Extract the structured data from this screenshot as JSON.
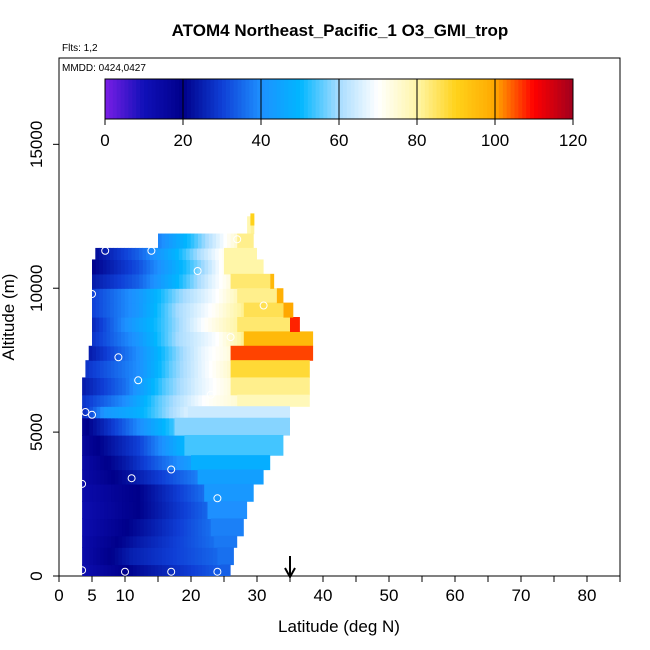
{
  "chart_data": {
    "type": "heatmap",
    "title": "ATOM4 Northeast_Pacific_1 O3_GMI_trop",
    "flights_label": "Flts: 1,2",
    "dates_label": "MMDD: 0424,0427",
    "xlabel": "Latitude (deg N)",
    "ylabel": "Altitude (m)",
    "xlim": [
      0,
      85
    ],
    "ylim": [
      0,
      18000
    ],
    "x_ticks": [
      0,
      5,
      10,
      20,
      30,
      40,
      50,
      60,
      70,
      80
    ],
    "x_tick_labels": [
      "0",
      "5",
      "10",
      "20",
      "30",
      "40",
      "50",
      "60",
      "70",
      "80"
    ],
    "y_ticks": [
      0,
      5000,
      10000,
      15000
    ],
    "y_tick_labels": [
      "0",
      "5000",
      "10000",
      "15000"
    ],
    "colorbar": {
      "range": [
        0,
        120
      ],
      "ticks": [
        0,
        20,
        40,
        60,
        80,
        100,
        120
      ],
      "tick_labels": [
        "0",
        "20",
        "40",
        "60",
        "80",
        "100",
        "120"
      ],
      "colors": [
        "#7a1ee6",
        "#1010b8",
        "#00008a",
        "#0f3fd6",
        "#1e90ff",
        "#00b6ff",
        "#a8dcff",
        "#ffffff",
        "#fff6a8",
        "#ffd21a",
        "#ffa800",
        "#ff0000",
        "#a0001e"
      ]
    },
    "latitude_marker": 35,
    "bands": [
      {
        "alt_min": 0,
        "alt_max": 400,
        "lat_min": 3.5,
        "lat_max": 24.5,
        "stops": [
          [
            3.5,
            12
          ],
          [
            12,
            22
          ],
          [
            24.5,
            34
          ]
        ]
      },
      {
        "alt_min": 400,
        "alt_max": 1000,
        "lat_min": 3.5,
        "lat_max": 24,
        "stops": [
          [
            3.5,
            13
          ],
          [
            11,
            25
          ],
          [
            24,
            35
          ]
        ]
      },
      {
        "alt_min": 1000,
        "alt_max": 1400,
        "lat_min": 3.5,
        "lat_max": 23.5,
        "stops": [
          [
            3.5,
            13
          ],
          [
            12,
            24
          ],
          [
            23.5,
            36
          ]
        ]
      },
      {
        "alt_min": 1400,
        "alt_max": 2000,
        "lat_min": 3.5,
        "lat_max": 23,
        "stops": [
          [
            3.5,
            12
          ],
          [
            12,
            22
          ],
          [
            23,
            36
          ]
        ]
      },
      {
        "alt_min": 2000,
        "alt_max": 2600,
        "lat_min": 3.5,
        "lat_max": 22.5,
        "stops": [
          [
            3.5,
            12
          ],
          [
            12,
            20
          ],
          [
            22.5,
            35
          ]
        ]
      },
      {
        "alt_min": 2600,
        "alt_max": 3200,
        "lat_min": 3.5,
        "lat_max": 22,
        "stops": [
          [
            3.5,
            13
          ],
          [
            12,
            20
          ],
          [
            22,
            36
          ]
        ]
      },
      {
        "alt_min": 3200,
        "alt_max": 3700,
        "lat_min": 3.5,
        "lat_max": 21,
        "stops": [
          [
            3.5,
            14
          ],
          [
            10,
            22
          ],
          [
            21,
            38
          ]
        ]
      },
      {
        "alt_min": 3700,
        "alt_max": 4200,
        "lat_min": 3.5,
        "lat_max": 20,
        "stops": [
          [
            3.5,
            14
          ],
          [
            10,
            24
          ],
          [
            20,
            44
          ]
        ]
      },
      {
        "alt_min": 4200,
        "alt_max": 4900,
        "lat_min": 3.5,
        "lat_max": 19,
        "stops": [
          [
            3.5,
            16
          ],
          [
            12,
            30
          ],
          [
            19,
            50
          ]
        ]
      },
      {
        "alt_min": 4900,
        "alt_max": 5500,
        "lat_min": 3.5,
        "lat_max": 17.5,
        "stops": [
          [
            3.5,
            18
          ],
          [
            10,
            34
          ],
          [
            17.5,
            54
          ]
        ]
      },
      {
        "alt_min": 5500,
        "alt_max": 5900,
        "lat_min": 3.5,
        "lat_max": 19.5,
        "stops": [
          [
            3.5,
            26
          ],
          [
            7,
            42
          ],
          [
            12,
            48
          ],
          [
            19.5,
            66
          ]
        ]
      },
      {
        "alt_min": 5900,
        "alt_max": 6300,
        "lat_min": 3.5,
        "lat_max": 27,
        "stops": [
          [
            3.5,
            28
          ],
          [
            10,
            40
          ],
          [
            15,
            55
          ],
          [
            22,
            70
          ],
          [
            27,
            75
          ]
        ]
      },
      {
        "alt_min": 6300,
        "alt_max": 6900,
        "lat_min": 3.5,
        "lat_max": 26,
        "stops": [
          [
            3.5,
            24
          ],
          [
            10,
            36
          ],
          [
            16,
            55
          ],
          [
            21,
            66
          ],
          [
            26,
            74
          ]
        ]
      },
      {
        "alt_min": 6900,
        "alt_max": 7500,
        "lat_min": 4,
        "lat_max": 26,
        "stops": [
          [
            4,
            28
          ],
          [
            12,
            40
          ],
          [
            17,
            56
          ],
          [
            22,
            68
          ],
          [
            26,
            76
          ]
        ]
      },
      {
        "alt_min": 7500,
        "alt_max": 8000,
        "lat_min": 4.5,
        "lat_max": 26,
        "stops": [
          [
            4.5,
            24
          ],
          [
            12,
            40
          ],
          [
            18,
            58
          ],
          [
            22,
            68
          ],
          [
            26,
            74
          ]
        ]
      },
      {
        "alt_min": 8000,
        "alt_max": 8500,
        "lat_min": 5,
        "lat_max": 28,
        "stops": [
          [
            5,
            28
          ],
          [
            12,
            42
          ],
          [
            18,
            60
          ],
          [
            24,
            70
          ],
          [
            28,
            82
          ]
        ]
      },
      {
        "alt_min": 8500,
        "alt_max": 9000,
        "lat_min": 5,
        "lat_max": 27,
        "stops": [
          [
            5,
            26
          ],
          [
            10,
            40
          ],
          [
            16,
            54
          ],
          [
            22,
            70
          ],
          [
            27,
            80
          ]
        ]
      },
      {
        "alt_min": 9000,
        "alt_max": 9500,
        "lat_min": 5,
        "lat_max": 28,
        "stops": [
          [
            5,
            30
          ],
          [
            12,
            42
          ],
          [
            18,
            60
          ],
          [
            24,
            72
          ],
          [
            28,
            82
          ]
        ]
      },
      {
        "alt_min": 9500,
        "alt_max": 10000,
        "lat_min": 5,
        "lat_max": 27,
        "stops": [
          [
            5,
            30
          ],
          [
            12,
            42
          ],
          [
            18,
            58
          ],
          [
            24,
            70
          ],
          [
            27,
            78
          ]
        ]
      },
      {
        "alt_min": 10000,
        "alt_max": 10500,
        "lat_min": 5,
        "lat_max": 26,
        "stops": [
          [
            5,
            24
          ],
          [
            12,
            34
          ],
          [
            18,
            50
          ],
          [
            23,
            66
          ],
          [
            26,
            74
          ]
        ]
      },
      {
        "alt_min": 10500,
        "alt_max": 11000,
        "lat_min": 5,
        "lat_max": 25,
        "stops": [
          [
            5,
            20
          ],
          [
            12,
            32
          ],
          [
            18,
            48
          ],
          [
            22,
            60
          ],
          [
            25,
            72
          ]
        ]
      },
      {
        "alt_min": 11000,
        "alt_max": 11400,
        "lat_min": 5.5,
        "lat_max": 25,
        "stops": [
          [
            5.5,
            22
          ],
          [
            12,
            34
          ],
          [
            18,
            50
          ],
          [
            23,
            66
          ],
          [
            25,
            72
          ]
        ]
      },
      {
        "alt_min": 11400,
        "alt_max": 11900,
        "lat_min": 15,
        "lat_max": 27,
        "stops": [
          [
            15,
            38
          ],
          [
            20,
            52
          ],
          [
            24,
            66
          ],
          [
            27,
            76
          ]
        ]
      },
      {
        "alt_min": 11900,
        "alt_max": 12500,
        "lat_min": 28.5,
        "lat_max": 29.5,
        "stops": [
          [
            28.5,
            78
          ],
          [
            29.5,
            82
          ]
        ]
      }
    ],
    "edge_cells": [
      {
        "alt_min": 11400,
        "alt_max": 11900,
        "lat_min": 27,
        "lat_max": 29.5,
        "value": 82
      },
      {
        "alt_min": 11000,
        "alt_max": 11400,
        "lat_min": 25,
        "lat_max": 30,
        "value": 80
      },
      {
        "alt_min": 10500,
        "alt_max": 11000,
        "lat_min": 25,
        "lat_max": 31,
        "value": 80
      },
      {
        "alt_min": 10000,
        "alt_max": 10500,
        "lat_min": 26,
        "lat_max": 32,
        "value": 84
      },
      {
        "alt_min": 9500,
        "alt_max": 10000,
        "lat_min": 27,
        "lat_max": 33,
        "value": 82
      },
      {
        "alt_min": 9000,
        "alt_max": 9500,
        "lat_min": 28,
        "lat_max": 34,
        "value": 86
      },
      {
        "alt_min": 8500,
        "alt_max": 9000,
        "lat_min": 27,
        "lat_max": 35,
        "value": 84
      },
      {
        "alt_min": 8000,
        "alt_max": 8500,
        "lat_min": 28,
        "lat_max": 38.5,
        "value": 96
      },
      {
        "alt_min": 7500,
        "alt_max": 8000,
        "lat_min": 26,
        "lat_max": 38.5,
        "value": 106
      },
      {
        "alt_min": 6900,
        "alt_max": 7500,
        "lat_min": 26,
        "lat_max": 38,
        "value": 88
      },
      {
        "alt_min": 6300,
        "alt_max": 6900,
        "lat_min": 26,
        "lat_max": 38,
        "value": 82
      },
      {
        "alt_min": 5900,
        "alt_max": 6300,
        "lat_min": 27,
        "lat_max": 38,
        "value": 78
      },
      {
        "alt_min": 5500,
        "alt_max": 5900,
        "lat_min": 19.5,
        "lat_max": 35,
        "value": 64
      },
      {
        "alt_min": 4900,
        "alt_max": 5500,
        "lat_min": 17.5,
        "lat_max": 35,
        "value": 58
      },
      {
        "alt_min": 4200,
        "alt_max": 4900,
        "lat_min": 19,
        "lat_max": 34,
        "value": 54
      },
      {
        "alt_min": 3700,
        "alt_max": 4200,
        "lat_min": 20,
        "lat_max": 32,
        "value": 48
      },
      {
        "alt_min": 3200,
        "alt_max": 3700,
        "lat_min": 21,
        "lat_max": 31,
        "value": 44
      },
      {
        "alt_min": 2600,
        "alt_max": 3200,
        "lat_min": 22,
        "lat_max": 29.5,
        "value": 42
      },
      {
        "alt_min": 2000,
        "alt_max": 2600,
        "lat_min": 22.5,
        "lat_max": 28.5,
        "value": 40
      },
      {
        "alt_min": 1400,
        "alt_max": 2000,
        "lat_min": 23,
        "lat_max": 28,
        "value": 38
      },
      {
        "alt_min": 1000,
        "alt_max": 1400,
        "lat_min": 23.5,
        "lat_max": 27,
        "value": 37
      },
      {
        "alt_min": 400,
        "alt_max": 1000,
        "lat_min": 24,
        "lat_max": 26.5,
        "value": 36
      },
      {
        "alt_min": 0,
        "alt_max": 400,
        "lat_min": 24.5,
        "lat_max": 26,
        "value": 34
      },
      {
        "alt_min": 8500,
        "alt_max": 9000,
        "lat_min": 35,
        "lat_max": 36.5,
        "value": 108
      },
      {
        "alt_min": 9000,
        "alt_max": 9500,
        "lat_min": 34,
        "lat_max": 35.5,
        "value": 100
      },
      {
        "alt_min": 9500,
        "alt_max": 10000,
        "lat_min": 33,
        "lat_max": 34,
        "value": 98
      },
      {
        "alt_min": 10000,
        "alt_max": 10500,
        "lat_min": 32,
        "lat_max": 32.6,
        "value": 96
      },
      {
        "alt_min": 12200,
        "alt_max": 12600,
        "lat_min": 29,
        "lat_max": 29.6,
        "value": 90
      }
    ],
    "sample_points": [
      {
        "lat": 7,
        "alt": 11300
      },
      {
        "lat": 14,
        "alt": 11300
      },
      {
        "lat": 27,
        "alt": 11700
      },
      {
        "lat": 21,
        "alt": 10600
      },
      {
        "lat": 5,
        "alt": 9800
      },
      {
        "lat": 31,
        "alt": 9400
      },
      {
        "lat": 26,
        "alt": 8300
      },
      {
        "lat": 9,
        "alt": 7600
      },
      {
        "lat": 12,
        "alt": 6800
      },
      {
        "lat": 23,
        "alt": 6300
      },
      {
        "lat": 4,
        "alt": 5700
      },
      {
        "lat": 5,
        "alt": 5600
      },
      {
        "lat": 17,
        "alt": 3700
      },
      {
        "lat": 11,
        "alt": 3400
      },
      {
        "lat": 3.5,
        "alt": 3200
      },
      {
        "lat": 24,
        "alt": 2700
      },
      {
        "lat": 3.5,
        "alt": 200
      },
      {
        "lat": 10,
        "alt": 150
      },
      {
        "lat": 17,
        "alt": 150
      },
      {
        "lat": 24,
        "alt": 150
      }
    ]
  }
}
